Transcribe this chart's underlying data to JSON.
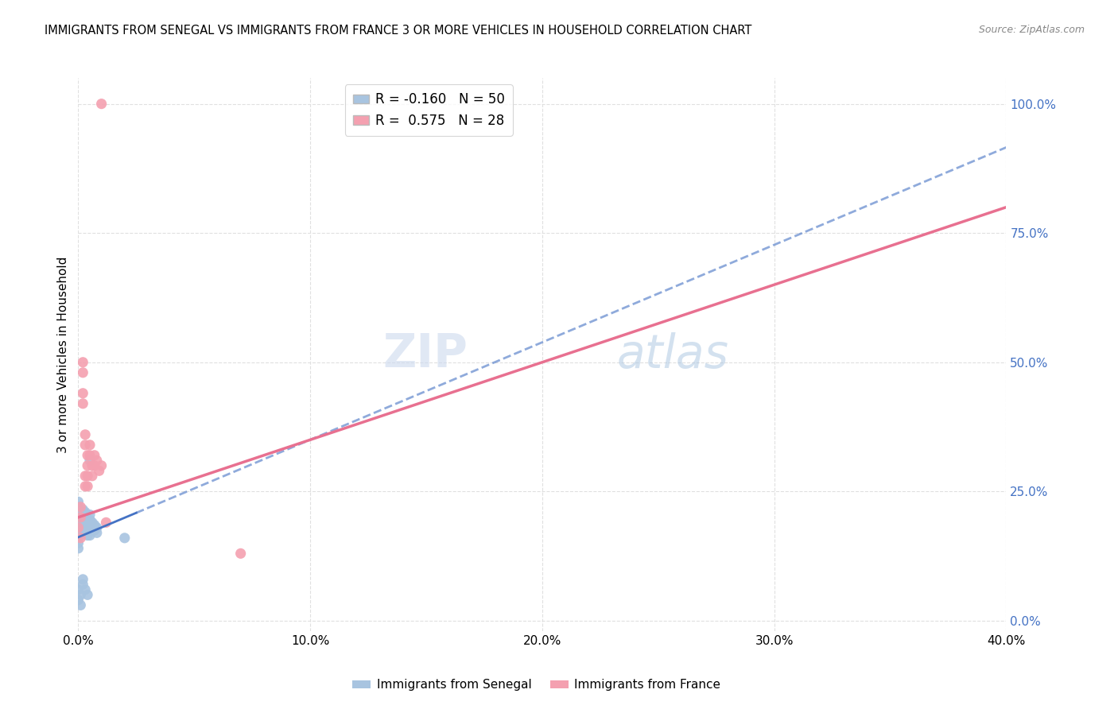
{
  "title": "IMMIGRANTS FROM SENEGAL VS IMMIGRANTS FROM FRANCE 3 OR MORE VEHICLES IN HOUSEHOLD CORRELATION CHART",
  "source": "Source: ZipAtlas.com",
  "ylabel": "3 or more Vehicles in Household",
  "x_tick_labels": [
    "0.0%",
    "10.0%",
    "20.0%",
    "30.0%",
    "40.0%"
  ],
  "y_tick_labels_right": [
    "0.0%",
    "25.0%",
    "50.0%",
    "75.0%",
    "100.0%"
  ],
  "x_range": [
    0.0,
    0.4
  ],
  "y_range": [
    -0.02,
    1.05
  ],
  "senegal_R": -0.16,
  "senegal_N": 50,
  "france_R": 0.575,
  "france_N": 28,
  "legend_label_senegal": "Immigrants from Senegal",
  "legend_label_france": "Immigrants from France",
  "color_senegal": "#a8c4e0",
  "color_france": "#f4a0b0",
  "color_senegal_line": "#4472c4",
  "color_france_line": "#e87090",
  "color_axis_right": "#4472c4",
  "watermark_zip": "ZIP",
  "watermark_atlas": "atlas",
  "senegal_points": [
    [
      0.0,
      0.2
    ],
    [
      0.0,
      0.19
    ],
    [
      0.0,
      0.18
    ],
    [
      0.0,
      0.17
    ],
    [
      0.0,
      0.16
    ],
    [
      0.0,
      0.21
    ],
    [
      0.0,
      0.22
    ],
    [
      0.0,
      0.15
    ],
    [
      0.0,
      0.23
    ],
    [
      0.0,
      0.14
    ],
    [
      0.001,
      0.2
    ],
    [
      0.001,
      0.18
    ],
    [
      0.001,
      0.19
    ],
    [
      0.001,
      0.17
    ],
    [
      0.001,
      0.21
    ],
    [
      0.002,
      0.195
    ],
    [
      0.002,
      0.185
    ],
    [
      0.002,
      0.205
    ],
    [
      0.002,
      0.175
    ],
    [
      0.002,
      0.215
    ],
    [
      0.003,
      0.19
    ],
    [
      0.003,
      0.2
    ],
    [
      0.003,
      0.18
    ],
    [
      0.003,
      0.17
    ],
    [
      0.003,
      0.21
    ],
    [
      0.004,
      0.185
    ],
    [
      0.004,
      0.195
    ],
    [
      0.004,
      0.175
    ],
    [
      0.004,
      0.165
    ],
    [
      0.005,
      0.185
    ],
    [
      0.005,
      0.175
    ],
    [
      0.005,
      0.195
    ],
    [
      0.005,
      0.165
    ],
    [
      0.005,
      0.205
    ],
    [
      0.006,
      0.18
    ],
    [
      0.006,
      0.19
    ],
    [
      0.007,
      0.175
    ],
    [
      0.007,
      0.185
    ],
    [
      0.008,
      0.17
    ],
    [
      0.008,
      0.18
    ],
    [
      0.0,
      0.06
    ],
    [
      0.0,
      0.04
    ],
    [
      0.001,
      0.05
    ],
    [
      0.001,
      0.03
    ],
    [
      0.002,
      0.08
    ],
    [
      0.002,
      0.07
    ],
    [
      0.003,
      0.06
    ],
    [
      0.004,
      0.05
    ],
    [
      0.02,
      0.16
    ],
    [
      0.005,
      0.31
    ]
  ],
  "france_points": [
    [
      0.0,
      0.18
    ],
    [
      0.001,
      0.2
    ],
    [
      0.001,
      0.22
    ],
    [
      0.001,
      0.16
    ],
    [
      0.002,
      0.48
    ],
    [
      0.002,
      0.5
    ],
    [
      0.002,
      0.44
    ],
    [
      0.002,
      0.42
    ],
    [
      0.003,
      0.36
    ],
    [
      0.003,
      0.34
    ],
    [
      0.003,
      0.28
    ],
    [
      0.003,
      0.26
    ],
    [
      0.004,
      0.32
    ],
    [
      0.004,
      0.3
    ],
    [
      0.004,
      0.28
    ],
    [
      0.004,
      0.26
    ],
    [
      0.005,
      0.34
    ],
    [
      0.005,
      0.32
    ],
    [
      0.006,
      0.3
    ],
    [
      0.006,
      0.28
    ],
    [
      0.007,
      0.32
    ],
    [
      0.007,
      0.3
    ],
    [
      0.008,
      0.31
    ],
    [
      0.009,
      0.29
    ],
    [
      0.01,
      0.3
    ],
    [
      0.012,
      0.19
    ],
    [
      0.07,
      0.13
    ],
    [
      0.01,
      1.0
    ]
  ],
  "background_color": "#ffffff",
  "grid_color": "#e0e0e0"
}
